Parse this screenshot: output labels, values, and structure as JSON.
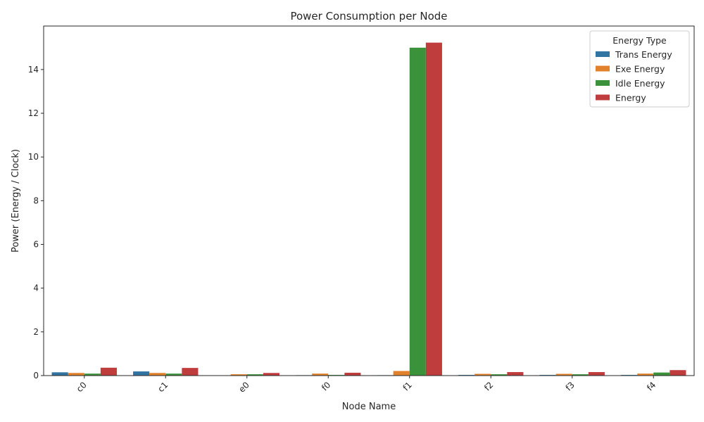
{
  "chart_data": {
    "type": "bar",
    "title": "Power Consumption per Node",
    "xlabel": "Node Name",
    "ylabel": "Power (Energy / Clock)",
    "categories": [
      "c0",
      "c1",
      "e0",
      "f0",
      "f1",
      "f2",
      "f3",
      "f4"
    ],
    "series": [
      {
        "name": "Trans Energy",
        "color": "#3274a1",
        "values": [
          0.15,
          0.19,
          0.0,
          0.02,
          0.02,
          0.03,
          0.03,
          0.03
        ]
      },
      {
        "name": "Exe Energy",
        "color": "#e1812c",
        "values": [
          0.12,
          0.12,
          0.06,
          0.09,
          0.21,
          0.08,
          0.08,
          0.09
        ]
      },
      {
        "name": "Idle Energy",
        "color": "#3a923a",
        "values": [
          0.09,
          0.09,
          0.06,
          0.03,
          15.0,
          0.06,
          0.06,
          0.14
        ]
      },
      {
        "name": "Energy",
        "color": "#c03d3e",
        "values": [
          0.36,
          0.35,
          0.12,
          0.13,
          15.23,
          0.16,
          0.16,
          0.25
        ]
      }
    ],
    "yticks": [
      0,
      2,
      4,
      6,
      8,
      10,
      12,
      14
    ],
    "ylim": [
      0,
      15.99
    ],
    "grid": false,
    "legend": {
      "title": "Energy Type",
      "placement": "top-right"
    },
    "xtick_rotation": 45
  }
}
